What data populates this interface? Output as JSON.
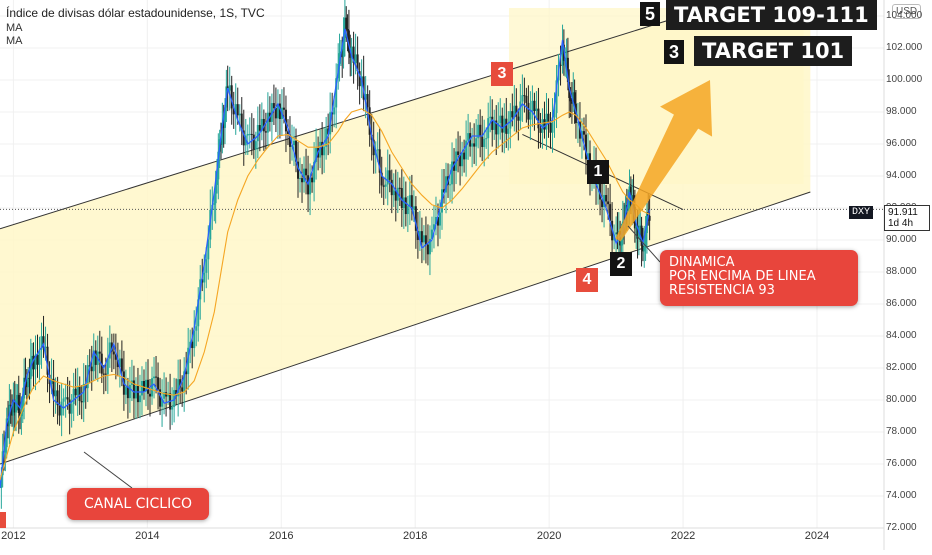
{
  "header": {
    "title": "Índice de divisas dólar estadounidense, 1S, TVC",
    "ma1": "MA",
    "ma2": "MA"
  },
  "axis": {
    "currency": "USD",
    "symbol": "DXY",
    "last_price": "91.911",
    "countdown": "1d 4h"
  },
  "annotations": {
    "target_top": {
      "num": "5",
      "text": "TARGET 109-111"
    },
    "target_mid": {
      "num": "3",
      "text": "TARGET 101"
    },
    "label_1": "1",
    "label_2": "2",
    "label_3": "3",
    "label_4": "4",
    "callout_dynamic": [
      "DINAMICA",
      "POR ENCIMA DE LINEA",
      "RESISTENCIA 93"
    ],
    "callout_channel": "CANAL CICLICO"
  },
  "colors": {
    "up_candle": "#26a69a",
    "down_candle": "#222222",
    "ma_fast": "#2962ff",
    "ma_slow": "#f5a623",
    "channel_fill": "#fff7c8",
    "callout_red": "#e8453c",
    "arrow_orange": "#f5a623"
  },
  "chart_data": {
    "type": "line",
    "ylim": [
      72,
      105
    ],
    "xlim": [
      2011.8,
      2025.0
    ],
    "yticks": [
      "104.000",
      "102.000",
      "100.000",
      "98.000",
      "96.000",
      "94.000",
      "92.000",
      "90.000",
      "88.000",
      "86.000",
      "84.000",
      "82.000",
      "80.000",
      "78.000",
      "76.000",
      "74.000",
      "72.000"
    ],
    "ytick_values": [
      104,
      102,
      100,
      98,
      96,
      94,
      92,
      90,
      88,
      86,
      84,
      82,
      80,
      78,
      76,
      74,
      72
    ],
    "xticks": [
      "2012",
      "2014",
      "2016",
      "2018",
      "2020",
      "2022",
      "2024"
    ],
    "xtick_values": [
      2012,
      2014,
      2016,
      2018,
      2020,
      2022,
      2024
    ],
    "series": [
      {
        "x": [
          2011.8,
          2011.9,
          2012.0,
          2012.1,
          2012.2,
          2012.3,
          2012.45,
          2012.6,
          2012.75,
          2012.9,
          2013.05,
          2013.2,
          2013.35,
          2013.5,
          2013.65,
          2013.8,
          2013.95,
          2014.1,
          2014.25,
          2014.4,
          2014.55,
          2014.7,
          2014.85,
          2015.0,
          2015.1,
          2015.2,
          2015.35,
          2015.5,
          2015.65,
          2015.8,
          2015.95,
          2016.1,
          2016.25,
          2016.4,
          2016.55,
          2016.7,
          2016.85,
          2016.95,
          2017.05,
          2017.2,
          2017.35,
          2017.5,
          2017.65,
          2017.8,
          2017.95,
          2018.1,
          2018.25,
          2018.4,
          2018.55,
          2018.7,
          2018.85,
          2019.0,
          2019.15,
          2019.3,
          2019.45,
          2019.6,
          2019.75,
          2019.9,
          2020.05,
          2020.2,
          2020.3,
          2020.4,
          2020.55,
          2020.7,
          2020.85,
          2021.0,
          2021.1,
          2021.2,
          2021.3,
          2021.4,
          2021.5
        ],
        "values": [
          74.5,
          78.5,
          80.0,
          79.5,
          81.5,
          82.5,
          83.5,
          80.0,
          79.5,
          80.0,
          80.5,
          83.0,
          82.0,
          83.5,
          81.0,
          80.5,
          80.5,
          81.0,
          79.8,
          80.0,
          81.5,
          84.5,
          88.5,
          93.0,
          96.5,
          99.5,
          97.5,
          96.0,
          96.5,
          97.5,
          98.5,
          97.0,
          94.5,
          93.5,
          95.5,
          96.5,
          100.5,
          103.2,
          101.5,
          100.0,
          96.5,
          94.0,
          93.5,
          92.5,
          92.0,
          89.5,
          90.0,
          92.5,
          94.5,
          95.5,
          96.5,
          96.5,
          97.5,
          97.0,
          97.5,
          98.5,
          98.0,
          97.0,
          97.5,
          102.5,
          99.5,
          98.0,
          95.5,
          93.5,
          92.0,
          89.8,
          90.5,
          93.0,
          91.0,
          89.8,
          91.9
        ]
      },
      {
        "values": [
          75.0,
          76.5,
          78.0,
          79.0,
          80.0,
          80.8,
          81.5,
          81.2,
          81.0,
          80.8,
          80.9,
          81.2,
          81.5,
          81.6,
          81.4,
          81.0,
          80.8,
          80.6,
          80.4,
          80.3,
          80.5,
          81.2,
          83.0,
          85.5,
          88.0,
          90.5,
          92.5,
          94.0,
          95.0,
          95.8,
          96.5,
          96.6,
          96.2,
          95.8,
          95.8,
          96.0,
          96.8,
          97.5,
          98.0,
          98.2,
          97.8,
          96.8,
          95.5,
          94.5,
          93.5,
          92.8,
          92.2,
          92.0,
          92.5,
          93.2,
          94.0,
          94.8,
          95.5,
          96.0,
          96.5,
          97.0,
          97.2,
          97.3,
          97.4,
          97.8,
          98.0,
          97.8,
          97.0,
          96.0,
          95.0,
          93.8,
          93.0,
          92.5,
          92.2,
          91.8,
          91.6
        ]
      }
    ],
    "channel": {
      "upper": [
        [
          2011.8,
          90.7
        ],
        [
          2023.9,
          106.5
        ]
      ],
      "lower": [
        [
          2011.8,
          76.0
        ],
        [
          2023.9,
          93.0
        ]
      ]
    },
    "trendline": [
      [
        2019.6,
        96.6
      ],
      [
        2022.0,
        91.9
      ]
    ]
  }
}
